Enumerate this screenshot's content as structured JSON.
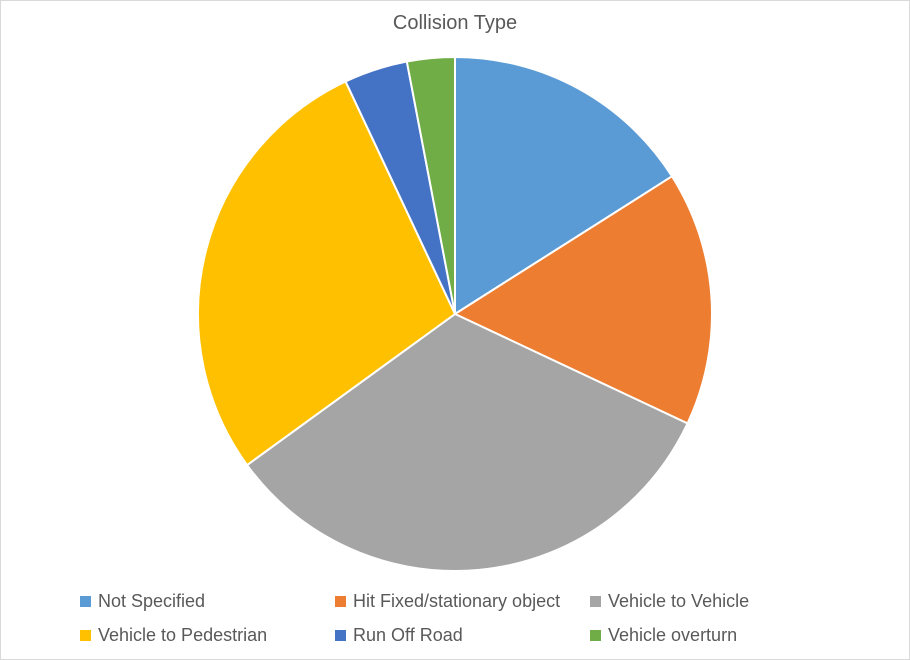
{
  "chart_data": {
    "type": "pie",
    "title": "Collision Type",
    "categories": [
      "Not Specified",
      "Hit Fixed/stationary object",
      "Vehicle to Vehicle",
      "Vehicle to Pedestrian",
      "Run Off Road",
      "Vehicle overturn"
    ],
    "values": [
      16,
      16,
      33,
      28,
      4,
      3
    ],
    "colors": [
      "#5B9BD5",
      "#ED7D31",
      "#A5A5A5",
      "#FFC000",
      "#4472C4",
      "#70AD47"
    ],
    "legend_position": "bottom",
    "start_angle": "12 o'clock",
    "direction": "clockwise"
  }
}
